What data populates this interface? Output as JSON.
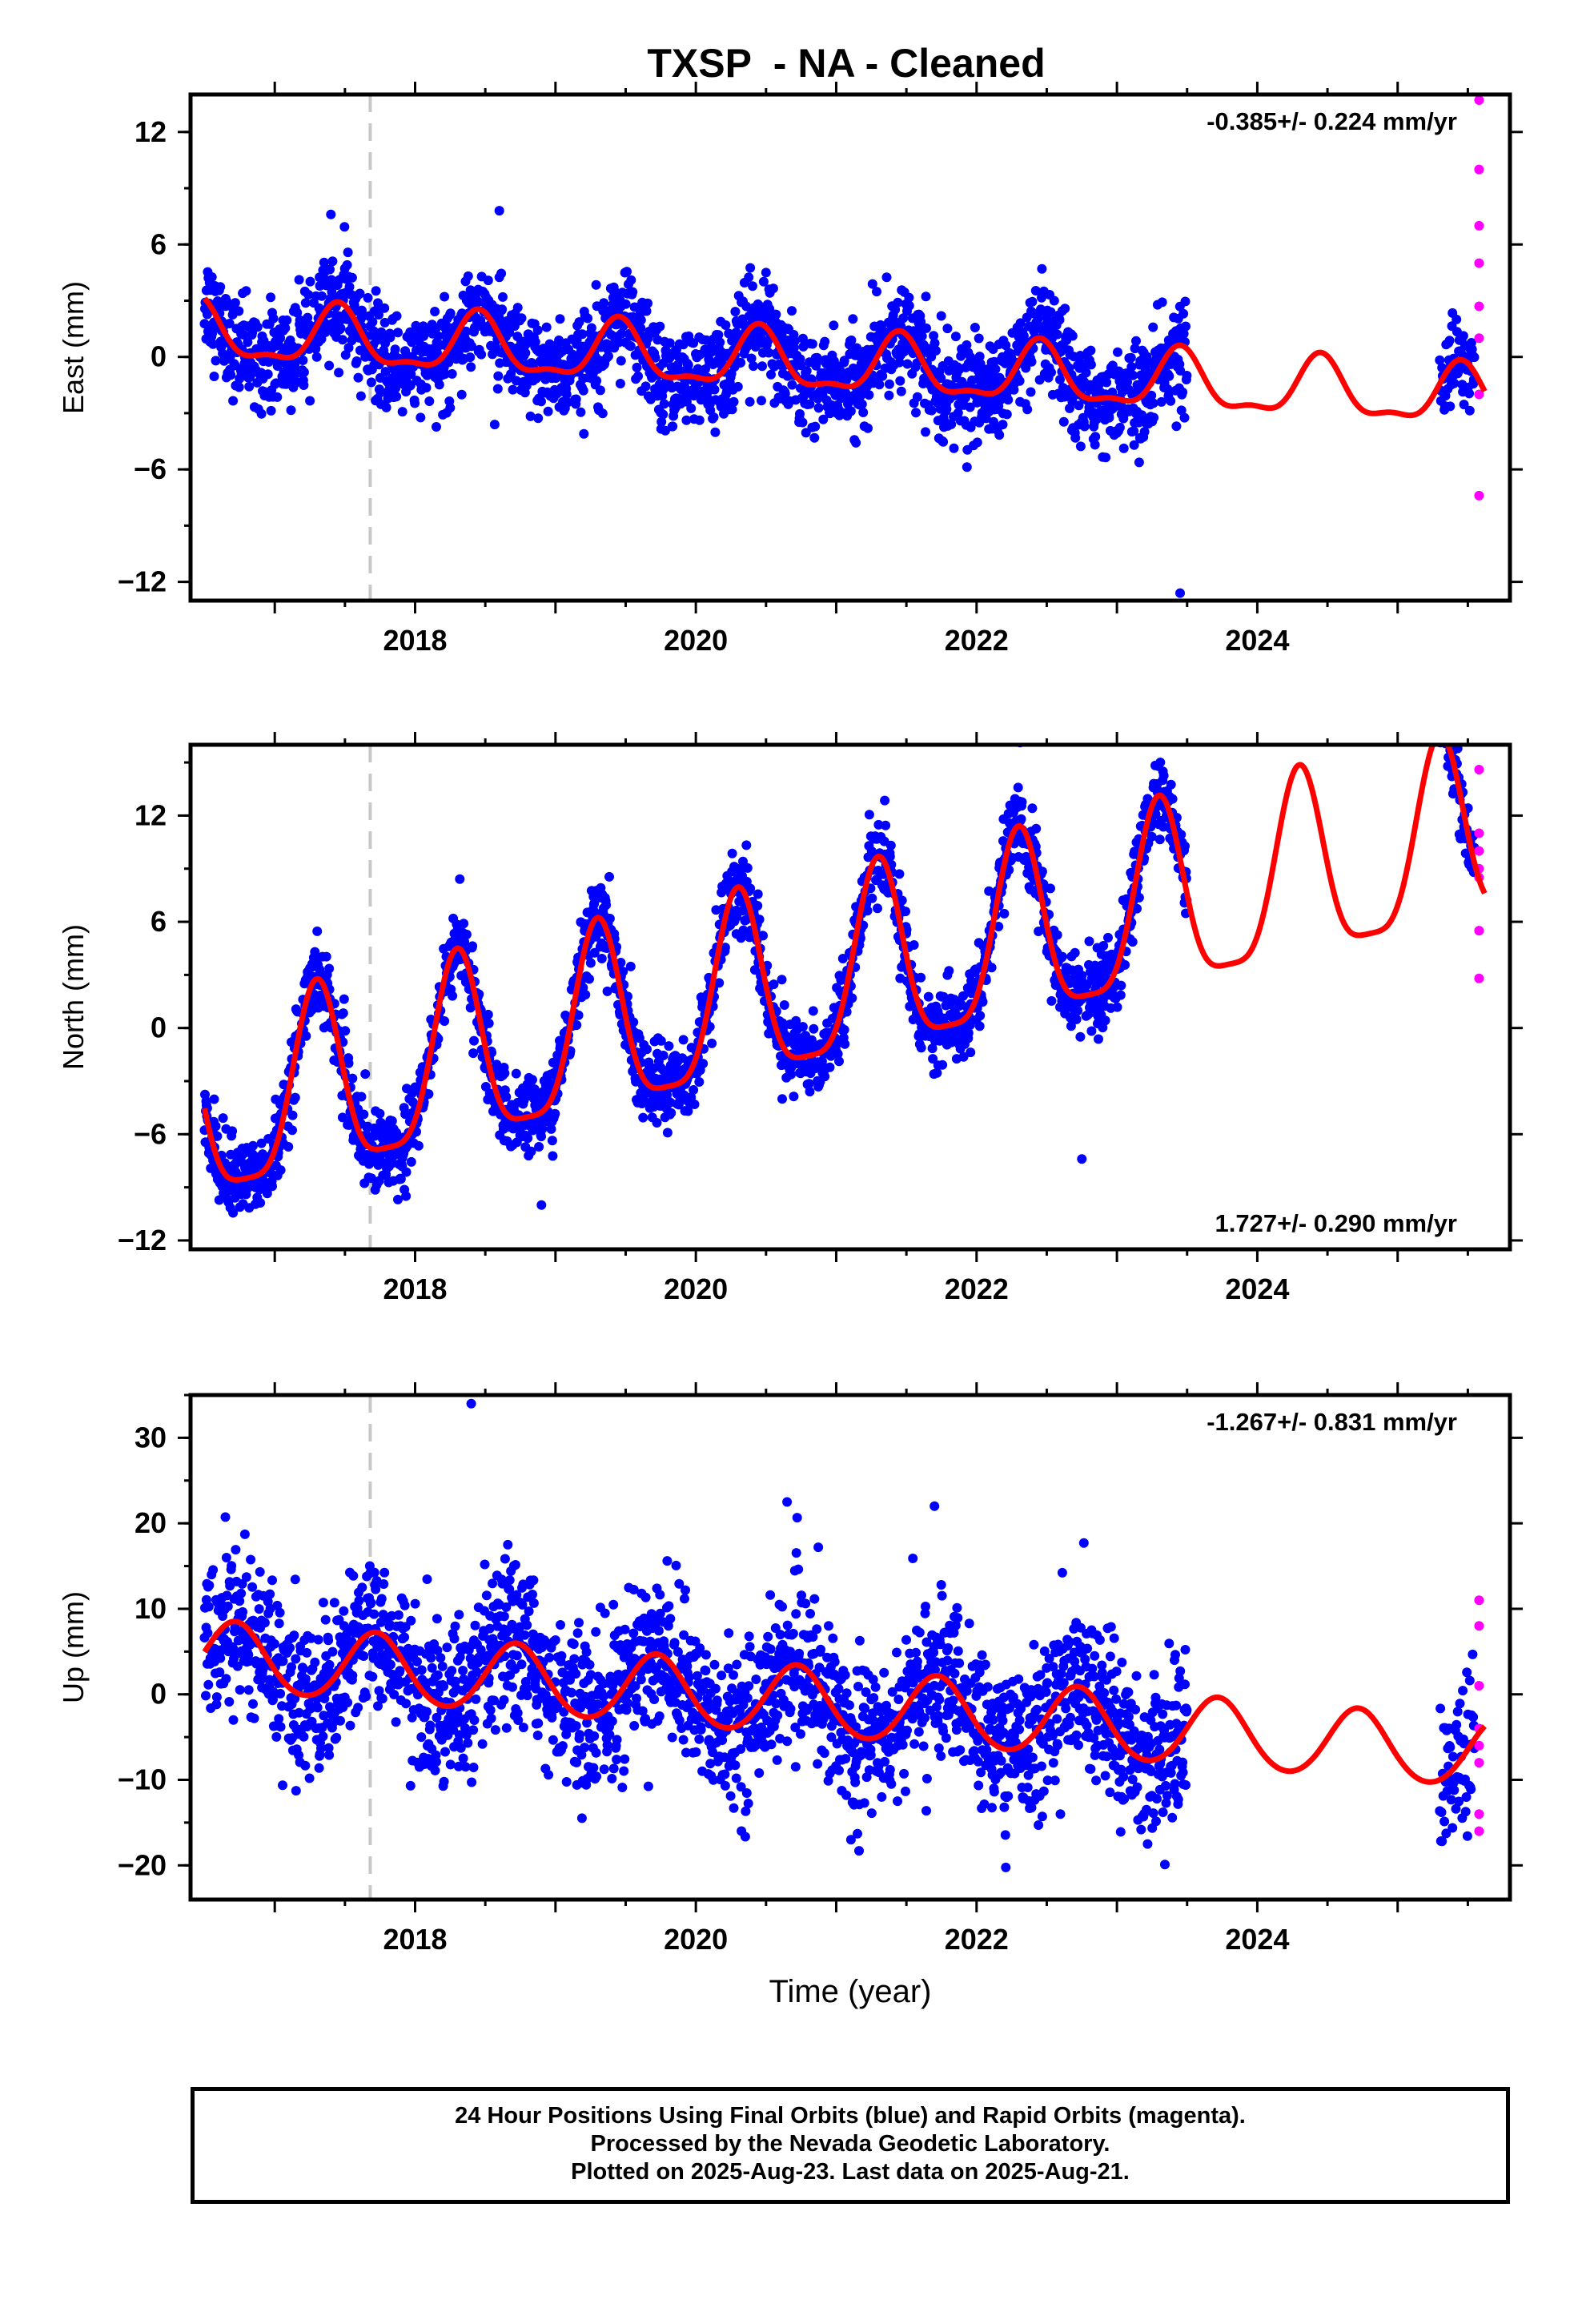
{
  "title": "TXSP  - NA - Cleaned",
  "colors": {
    "final_orbits": "#0000ff",
    "rapid_orbits": "#ff00ff",
    "model": "#ff0000",
    "event_line": "#c8c8c8",
    "axes": "#000000"
  },
  "chart_data": [
    {
      "type": "scatter",
      "component": "east",
      "ylabel": "East (mm)",
      "ylim": [
        -13,
        14
      ],
      "xlim": [
        2016.4,
        2025.8
      ],
      "yticks": [
        -12,
        -6,
        0,
        6,
        12
      ],
      "xticks": [
        2018,
        2020,
        2022,
        2024
      ],
      "rate_label": "-0.385+/- 0.224 mm/yr",
      "rate_position": "top-right",
      "event_line_x": 2017.68,
      "final_orbits": {
        "x_range": [
          2016.5,
          2023.5
        ],
        "gap": [
          2023.5,
          2025.3
        ],
        "second_range": [
          2025.3,
          2025.55
        ],
        "mean_offset": 1.25,
        "trend_mm_per_yr": -0.385,
        "annual_amp": 1.5,
        "annual_phase": 0.45,
        "semiannual_amp": 0.55,
        "scatter_sd": 1.3,
        "outliers": [
          [
            2023.45,
            -12.6
          ],
          [
            2018.6,
            7.8
          ],
          [
            2017.4,
            7.6
          ]
        ]
      },
      "rapid_orbits": [
        [
          2025.58,
          13.7
        ],
        [
          2025.58,
          10.0
        ],
        [
          2025.58,
          7.0
        ],
        [
          2025.58,
          5.0
        ],
        [
          2025.58,
          2.7
        ],
        [
          2025.58,
          1.0
        ],
        [
          2025.58,
          -2.0
        ],
        [
          2025.58,
          -7.4
        ]
      ],
      "model": {
        "offset": 1.25,
        "trend": -0.385,
        "annual_amp": 1.5,
        "annual_phase": 0.45,
        "semiannual_amp": 0.55
      }
    },
    {
      "type": "scatter",
      "component": "north",
      "ylabel": "North (mm)",
      "ylim": [
        -12.5,
        16
      ],
      "xlim": [
        2016.4,
        2025.8
      ],
      "yticks": [
        -12,
        -6,
        0,
        6,
        12
      ],
      "xticks": [
        2018,
        2020,
        2022,
        2024
      ],
      "rate_label": "1.727+/- 0.290 mm/yr",
      "rate_position": "bottom-right",
      "event_line_x": 2017.68,
      "final_orbits": {
        "x_range": [
          2016.5,
          2023.5
        ],
        "gap": [
          2023.5,
          2025.3
        ],
        "second_range": [
          2025.3,
          2025.55
        ],
        "mean_offset": -5.1,
        "trend_mm_per_yr": 1.727,
        "annual_amp": 5.2,
        "annual_phase": 0.3,
        "semiannual_amp": 1.3,
        "scatter_sd": 1.1,
        "outliers": [
          [
            2022.75,
            -7.4
          ],
          [
            2018.9,
            -10.0
          ]
        ]
      },
      "rapid_orbits": [
        [
          2025.58,
          14.6
        ],
        [
          2025.58,
          11.0
        ],
        [
          2025.58,
          10.0
        ],
        [
          2025.58,
          9.0
        ],
        [
          2025.58,
          8.5
        ],
        [
          2025.58,
          5.5
        ],
        [
          2025.58,
          2.8
        ]
      ],
      "model": {
        "offset": -5.1,
        "trend": 1.727,
        "annual_amp": 5.2,
        "annual_phase": 0.3,
        "semiannual_amp": 1.3
      }
    },
    {
      "type": "scatter",
      "component": "up",
      "ylabel": "Up (mm)",
      "ylim": [
        -24,
        35
      ],
      "xlim": [
        2016.4,
        2025.8
      ],
      "yticks": [
        -20,
        -10,
        0,
        10,
        20,
        30
      ],
      "xticks": [
        2018,
        2020,
        2022,
        2024
      ],
      "xlabel": "Time (year)",
      "rate_label": "-1.267+/- 0.831 mm/yr",
      "rate_position": "top-right",
      "event_line_x": 2017.68,
      "final_orbits": {
        "x_range": [
          2016.5,
          2023.5
        ],
        "gap": [
          2023.5,
          2025.3
        ],
        "second_range": [
          2025.3,
          2025.55
        ],
        "mean_offset": 4.5,
        "trend_mm_per_yr": -1.267,
        "annual_amp": 4.0,
        "annual_phase": 0.72,
        "semiannual_amp": 0.3,
        "scatter_sd": 4.5,
        "outliers": [
          [
            2018.4,
            34.0
          ],
          [
            2020.65,
            22.5
          ],
          [
            2021.7,
            22.0
          ]
        ]
      },
      "rapid_orbits": [
        [
          2025.58,
          11.0
        ],
        [
          2025.58,
          8.0
        ],
        [
          2025.58,
          1.0
        ],
        [
          2025.58,
          -4.0
        ],
        [
          2025.58,
          -6.0
        ],
        [
          2025.58,
          -8.0
        ],
        [
          2025.58,
          -14.0
        ],
        [
          2025.58,
          -16.0
        ]
      ],
      "model": {
        "offset": 4.5,
        "trend": -1.267,
        "annual_amp": 4.0,
        "annual_phase": 0.72,
        "semiannual_amp": 0.3
      }
    }
  ],
  "footer": {
    "line1": "24 Hour Positions Using Final Orbits (blue) and Rapid Orbits (magenta).",
    "line2": "Processed by the Nevada Geodetic Laboratory.",
    "line3": "Plotted on 2025-Aug-23. Last data on 2025-Aug-21."
  }
}
